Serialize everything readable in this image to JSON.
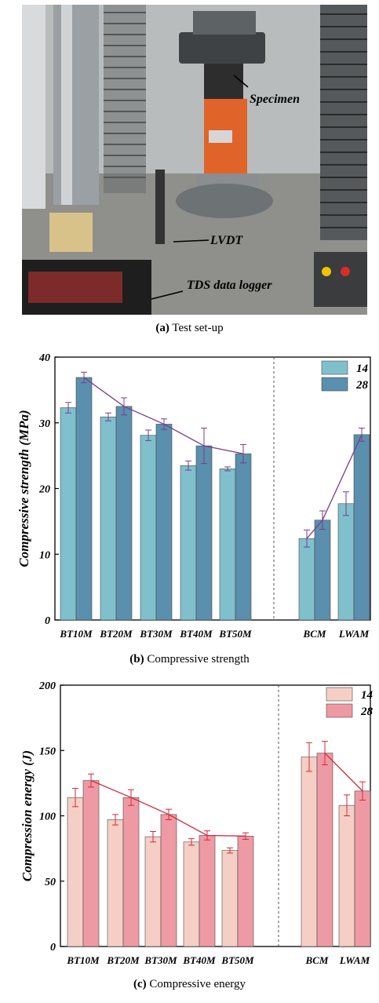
{
  "figure": {
    "photo": {
      "labels": {
        "specimen": "Specimen",
        "lvdt": "LVDT",
        "logger": "TDS data logger"
      }
    },
    "captions": {
      "a_tag": "(a)",
      "a_text": " Test set-up",
      "b_tag": "(b)",
      "b_text": " Compressive strength",
      "c_tag": "(c)",
      "c_text": " Compressive energy"
    }
  },
  "chart_data": [
    {
      "type": "bar",
      "ylabel": "Compressive strength (MPa)",
      "ylim": [
        0,
        40
      ],
      "yticks": [
        0,
        10,
        20,
        30,
        40
      ],
      "categories": [
        "BT10M",
        "BT20M",
        "BT30M",
        "BT40M",
        "BT50M",
        "BCM",
        "LWAM"
      ],
      "series": [
        {
          "name": "14",
          "color": "#7fc0cc",
          "values": [
            32.3,
            30.9,
            28.1,
            23.5,
            23.0,
            12.4,
            17.7
          ],
          "errors": [
            0.8,
            0.6,
            0.8,
            0.7,
            0.3,
            1.3,
            1.8
          ]
        },
        {
          "name": "28",
          "color": "#5a8fad",
          "values": [
            36.9,
            32.5,
            29.8,
            26.5,
            25.3,
            15.2,
            28.2
          ],
          "errors": [
            0.8,
            1.3,
            0.8,
            2.7,
            1.4,
            1.4,
            1.0
          ]
        }
      ],
      "trend_color": "#7a3c8c",
      "legend": "top-right",
      "separator_after": "BT50M"
    },
    {
      "type": "bar",
      "ylabel": "Compression energy (J)",
      "ylim": [
        0,
        200
      ],
      "yticks": [
        0,
        50,
        100,
        150,
        200
      ],
      "categories": [
        "BT10M",
        "BT20M",
        "BT30M",
        "BT40M",
        "BT50M",
        "BCM",
        "LWAM"
      ],
      "series": [
        {
          "name": "14",
          "color": "#f5cfc6",
          "values": [
            114,
            97,
            84,
            80,
            73.5,
            145,
            108
          ],
          "errors": [
            7,
            4,
            4,
            2.5,
            2,
            11,
            8
          ]
        },
        {
          "name": "28",
          "color": "#ee9aa4",
          "values": [
            127,
            114,
            101,
            85,
            84.5,
            148,
            119
          ],
          "errors": [
            5,
            6,
            4,
            3.5,
            2.5,
            9,
            7
          ]
        }
      ],
      "trend_color": "#d62838",
      "legend": "top-right",
      "separator_after": "BT50M"
    }
  ]
}
